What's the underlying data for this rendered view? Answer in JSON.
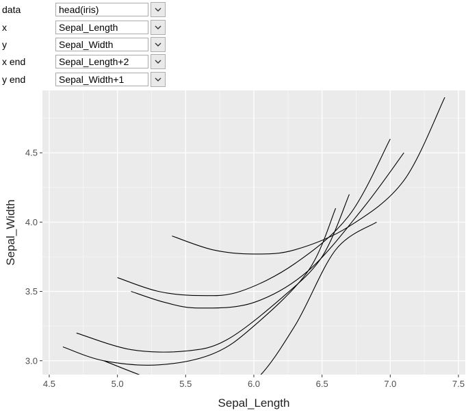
{
  "controls": [
    {
      "label": "data",
      "value": "head(iris)"
    },
    {
      "label": "x",
      "value": "Sepal_Length"
    },
    {
      "label": "y",
      "value": "Sepal_Width"
    },
    {
      "label": "x end",
      "value": "Sepal_Length+2"
    },
    {
      "label": "y end",
      "value": "Sepal_Width+1"
    }
  ],
  "chart_data": {
    "type": "line",
    "title": "",
    "xlabel": "Sepal_Length",
    "ylabel": "Sepal_Width",
    "xlim": [
      4.45,
      7.55
    ],
    "ylim": [
      2.9,
      4.95
    ],
    "xticks": [
      "4.5",
      "5.0",
      "5.5",
      "6.0",
      "6.5",
      "7.0",
      "7.5"
    ],
    "yticks": [
      "3.0",
      "3.5",
      "4.0",
      "4.5"
    ],
    "grid": true,
    "series": [
      {
        "values": [
          [
            5.1,
            3.5
          ],
          [
            5.35,
            3.42
          ],
          [
            5.6,
            3.38
          ],
          [
            6.0,
            3.42
          ],
          [
            6.4,
            3.65
          ],
          [
            6.8,
            4.1
          ],
          [
            7.1,
            4.5
          ]
        ]
      },
      {
        "values": [
          [
            4.9,
            3.0
          ],
          [
            5.3,
            2.85
          ],
          [
            5.7,
            2.75
          ],
          [
            6.0,
            2.85
          ],
          [
            6.3,
            3.25
          ],
          [
            6.6,
            3.8
          ],
          [
            6.9,
            4.0
          ]
        ]
      },
      {
        "values": [
          [
            4.7,
            3.2
          ],
          [
            5.1,
            3.08
          ],
          [
            5.5,
            3.07
          ],
          [
            5.8,
            3.15
          ],
          [
            6.2,
            3.45
          ],
          [
            6.5,
            3.75
          ],
          [
            6.7,
            4.2
          ]
        ]
      },
      {
        "values": [
          [
            4.6,
            3.1
          ],
          [
            4.9,
            3.0
          ],
          [
            5.3,
            2.97
          ],
          [
            5.7,
            3.05
          ],
          [
            6.0,
            3.25
          ],
          [
            6.4,
            3.65
          ],
          [
            6.6,
            4.1
          ]
        ]
      },
      {
        "values": [
          [
            5.0,
            3.6
          ],
          [
            5.3,
            3.5
          ],
          [
            5.6,
            3.47
          ],
          [
            5.9,
            3.5
          ],
          [
            6.3,
            3.7
          ],
          [
            6.7,
            4.05
          ],
          [
            7.0,
            4.6
          ]
        ]
      },
      {
        "values": [
          [
            5.4,
            3.9
          ],
          [
            5.7,
            3.8
          ],
          [
            6.0,
            3.77
          ],
          [
            6.3,
            3.8
          ],
          [
            6.7,
            3.97
          ],
          [
            7.1,
            4.3
          ],
          [
            7.4,
            4.9
          ]
        ]
      }
    ]
  }
}
